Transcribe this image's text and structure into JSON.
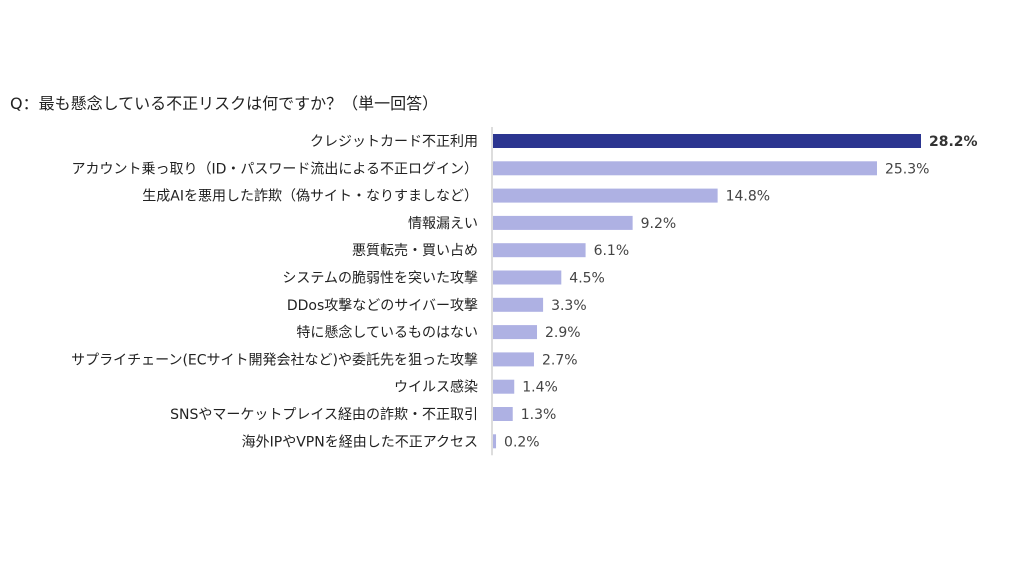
{
  "chart_data": {
    "type": "bar",
    "orientation": "horizontal",
    "title": "Q：最も懸念している不正リスクは何ですか？（単一回答）",
    "categories": [
      "クレジットカード不正利用",
      "アカウント乗っ取り（ID・パスワード流出による不正ログイン）",
      "生成AIを悪用した詐欺（偽サイト・なりすましなど）",
      "情報漏えい",
      "悪質転売・買い占め",
      "システムの脆弱性を突いた攻撃",
      "DDos攻撃などのサイバー攻撃",
      "特に懸念しているものはない",
      "サプライチェーン(ECサイト開発会社など)や委託先を狙った攻撃",
      "ウイルス感染",
      "SNSやマーケットプレイス経由の詐欺・不正取引",
      "海外IPやVPNを経由した不正アクセス"
    ],
    "values": [
      28.2,
      25.3,
      14.8,
      9.2,
      6.1,
      4.5,
      3.3,
      2.9,
      2.7,
      1.4,
      1.3,
      0.2
    ],
    "value_labels": [
      "28.2%",
      "25.3%",
      "14.8%",
      "9.2%",
      "6.1%",
      "4.5%",
      "3.3%",
      "2.9%",
      "2.7%",
      "1.4%",
      "1.3%",
      "0.2%"
    ],
    "xlim": [
      0,
      28.2
    ],
    "grid": false,
    "legend": "none",
    "colors": {
      "highlight": "#2b3590",
      "bar": "#aeb1e3",
      "axis": "#bbbbbb"
    }
  }
}
